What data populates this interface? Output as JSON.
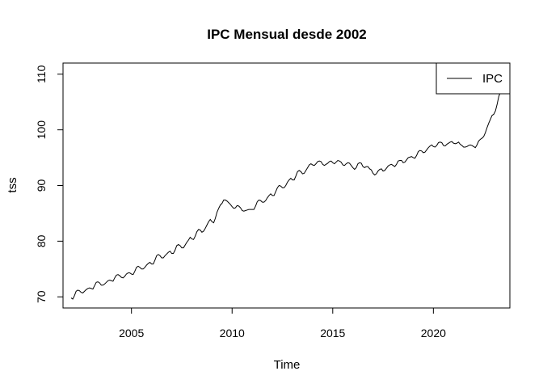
{
  "chart_data": {
    "type": "line",
    "title": "IPC Mensual desde 2002",
    "xlabel": "Time",
    "ylabel": "tss",
    "xlim": [
      2001.6,
      2023.8
    ],
    "ylim": [
      68,
      112
    ],
    "x_ticks": [
      2005,
      2010,
      2015,
      2020
    ],
    "y_ticks": [
      70,
      80,
      90,
      100,
      110
    ],
    "grid": false,
    "legend": {
      "position": "top-right",
      "entries": [
        "IPC"
      ]
    },
    "series": [
      {
        "name": "IPC",
        "color": "#000000",
        "frequency": "monthly",
        "start": "2002-01",
        "values": [
          69.8,
          69.6,
          70.2,
          71.0,
          71.2,
          71.1,
          70.8,
          70.7,
          71.0,
          71.3,
          71.5,
          71.6,
          71.5,
          71.4,
          72.0,
          72.6,
          72.7,
          72.5,
          72.1,
          72.1,
          72.3,
          72.6,
          72.9,
          73.0,
          72.9,
          72.8,
          73.4,
          73.9,
          74.0,
          73.8,
          73.5,
          73.4,
          73.7,
          74.1,
          74.3,
          74.3,
          74.1,
          74.0,
          74.6,
          75.3,
          75.5,
          75.3,
          75.0,
          75.0,
          75.3,
          75.7,
          76.0,
          76.2,
          75.9,
          75.9,
          76.6,
          77.4,
          77.6,
          77.4,
          77.0,
          77.0,
          77.4,
          77.7,
          78.0,
          78.2,
          77.8,
          77.8,
          78.4,
          79.2,
          79.4,
          79.2,
          78.8,
          78.8,
          79.3,
          79.8,
          80.2,
          80.7,
          80.4,
          80.3,
          80.9,
          81.7,
          82.1,
          82.0,
          81.6,
          81.8,
          82.3,
          82.9,
          83.5,
          83.9,
          83.5,
          83.3,
          84.1,
          85.2,
          85.9,
          86.5,
          86.8,
          87.4,
          87.4,
          87.2,
          86.9,
          86.6,
          86.2,
          85.9,
          86.0,
          86.4,
          86.3,
          86.0,
          85.5,
          85.4,
          85.5,
          85.6,
          85.7,
          85.7,
          85.7,
          85.7,
          86.3,
          87.1,
          87.4,
          87.3,
          87.0,
          87.0,
          87.3,
          87.8,
          88.2,
          88.5,
          88.2,
          88.2,
          88.9,
          89.6,
          90.0,
          89.9,
          89.6,
          89.6,
          90.0,
          90.6,
          91.0,
          91.3,
          91.0,
          91.0,
          91.7,
          92.5,
          92.7,
          92.5,
          92.1,
          92.2,
          92.7,
          93.2,
          93.7,
          93.9,
          93.7,
          93.6,
          93.9,
          94.3,
          94.4,
          94.3,
          93.8,
          93.6,
          93.8,
          94.0,
          94.3,
          94.4,
          94.1,
          93.9,
          94.2,
          94.5,
          94.4,
          94.2,
          93.7,
          93.6,
          93.9,
          94.1,
          94.0,
          93.6,
          93.2,
          92.9,
          93.2,
          93.9,
          94.1,
          94.0,
          93.4,
          93.2,
          93.4,
          93.4,
          93.0,
          92.8,
          92.2,
          91.9,
          92.1,
          92.6,
          92.9,
          93.0,
          92.6,
          92.7,
          93.1,
          93.5,
          93.7,
          93.8,
          93.6,
          93.4,
          93.8,
          94.4,
          94.5,
          94.5,
          94.1,
          94.2,
          94.6,
          95.0,
          95.1,
          95.2,
          95.0,
          94.9,
          95.4,
          96.1,
          96.3,
          96.2,
          95.9,
          96.0,
          96.4,
          96.8,
          97.1,
          97.3,
          97.0,
          96.9,
          97.2,
          97.7,
          97.8,
          97.7,
          97.2,
          97.1,
          97.4,
          97.6,
          97.8,
          97.9,
          97.6,
          97.5,
          97.6,
          97.8,
          97.4,
          97.2,
          96.9,
          96.9,
          97.0,
          97.2,
          97.3,
          97.2,
          97.0,
          96.8,
          97.3,
          98.0,
          98.3,
          98.5,
          98.8,
          99.5,
          100.4,
          101.2,
          101.9,
          102.6,
          102.8,
          103.4,
          104.6,
          106.0,
          106.8,
          108.2
        ]
      }
    ]
  }
}
